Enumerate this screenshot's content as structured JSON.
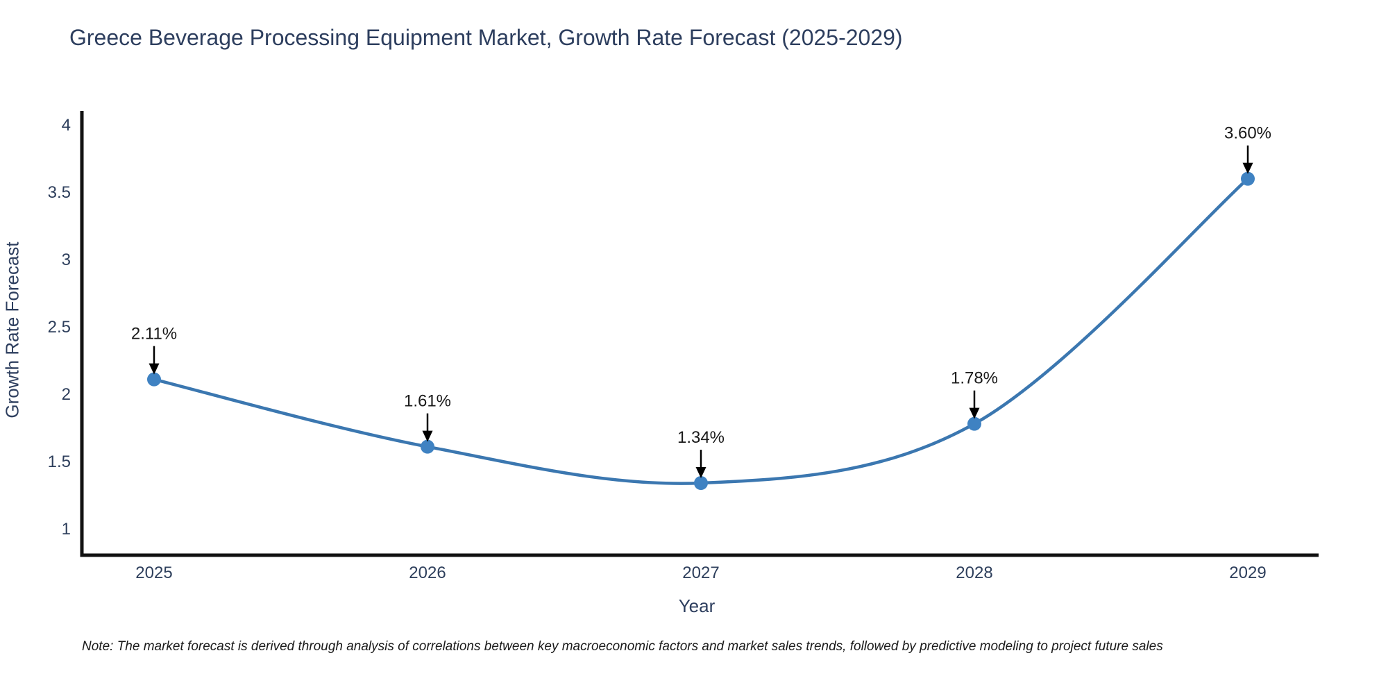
{
  "chart_data": {
    "type": "line",
    "title": "Greece Beverage Processing Equipment Market, Growth Rate Forecast (2025-2029)",
    "xlabel": "Year",
    "ylabel": "Growth Rate Forecast",
    "x": [
      2025,
      2026,
      2027,
      2028,
      2029
    ],
    "values": [
      2.11,
      1.61,
      1.34,
      1.78,
      3.6
    ],
    "point_labels": [
      "2.11%",
      "1.61%",
      "1.34%",
      "1.78%",
      "3.60%"
    ],
    "x_tick_labels": [
      "2025",
      "2026",
      "2027",
      "2028",
      "2029"
    ],
    "y_ticks": [
      1,
      1.5,
      2,
      2.5,
      3,
      3.5,
      4
    ],
    "y_tick_labels": [
      "1",
      "1.5",
      "2",
      "2.5",
      "3",
      "3.5",
      "4"
    ],
    "ylim": [
      0.8,
      4.1
    ],
    "line_shape": "spline",
    "grid": false,
    "legend": "none",
    "colors": {
      "line": "#3b77b0",
      "marker": "#3f82c2",
      "axis_line": "#111111",
      "title_text": "#2d3e5e",
      "tick_text": "#2e3f5c",
      "annotation_text": "#1a1a1a",
      "annotation_arrow": "#000000"
    }
  },
  "note": {
    "text": "Note: The market forecast is derived through analysis of correlations between key macroeconomic factors and market sales trends, followed by predictive modeling to project future sales"
  }
}
